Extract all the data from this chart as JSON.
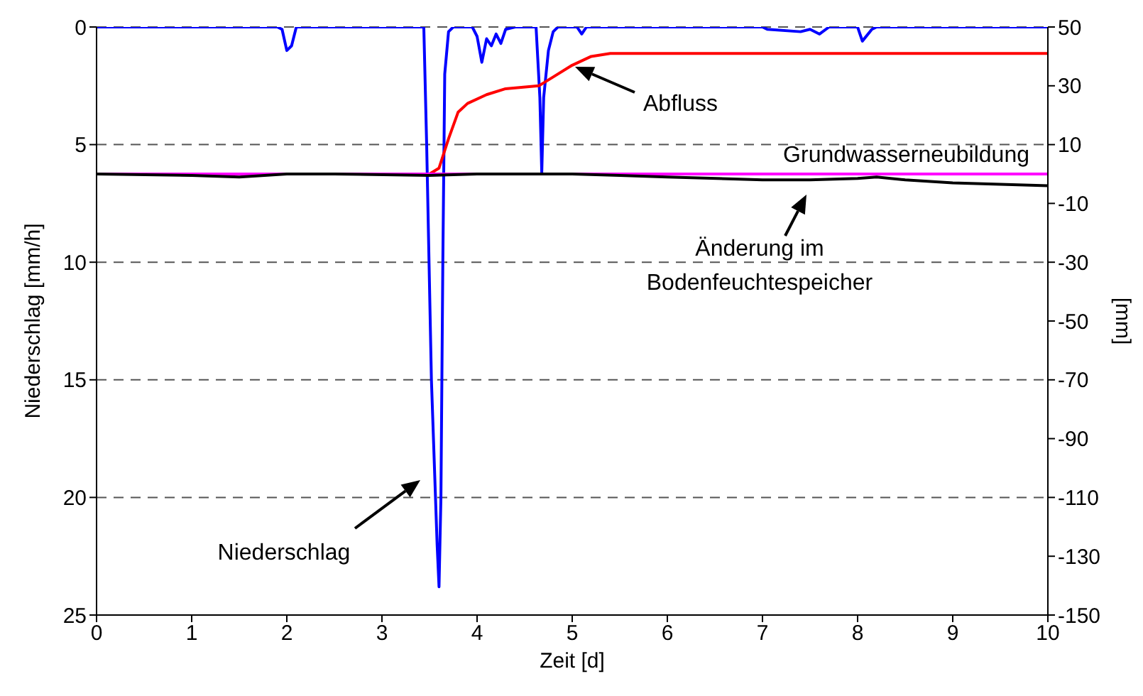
{
  "chart_data": {
    "type": "line",
    "xlabel": "Zeit [d]",
    "ylabel": "Niederschlag [mm/h]",
    "y2label": "[mm]",
    "xlim": [
      0,
      10
    ],
    "xticks": [
      0,
      1,
      2,
      3,
      4,
      5,
      6,
      7,
      8,
      9,
      10
    ],
    "ylim": [
      25,
      0
    ],
    "yticks": [
      0,
      5,
      10,
      15,
      20,
      25
    ],
    "y2lim": [
      -150,
      50
    ],
    "y2ticks": [
      50,
      30,
      10,
      -10,
      -30,
      -50,
      -70,
      -90,
      -110,
      -130,
      -150
    ],
    "annotations": [
      "Niederschlag",
      "Abfluss",
      "Grundwasserneubildung",
      "Änderung im Bodenfeuchtespeicher"
    ],
    "grid": "y",
    "line_style": "solid",
    "marker": "none",
    "series": [
      {
        "color": "#0000ff",
        "x": [
          0,
          1.9,
          1.95,
          2.0,
          2.05,
          2.1,
          3.44,
          3.47,
          3.52,
          3.58,
          3.6,
          3.62,
          3.64,
          3.66,
          3.7,
          3.75,
          3.95,
          4.0,
          4.05,
          4.1,
          4.15,
          4.2,
          4.25,
          4.3,
          4.4,
          4.62,
          4.66,
          4.68,
          4.7,
          4.75,
          4.8,
          4.85,
          5.05,
          5.1,
          5.15,
          7.0,
          7.05,
          7.4,
          7.5,
          7.6,
          7.7,
          8.0,
          8.05,
          8.15,
          8.2,
          10
        ],
        "values": [
          0,
          0,
          0.1,
          1.0,
          0.8,
          0,
          0,
          5,
          15,
          22,
          23.8,
          20,
          10,
          2,
          0.2,
          0,
          0,
          0.4,
          1.5,
          0.5,
          0.8,
          0.3,
          0.7,
          0.1,
          0,
          0,
          3,
          6.2,
          3,
          1,
          0.2,
          0,
          0,
          0.3,
          0,
          0,
          0.1,
          0.2,
          0.1,
          0.3,
          0,
          0,
          0.6,
          0.1,
          0,
          0
        ]
      },
      {
        "color": "#ff0000",
        "axis": "y2",
        "x": [
          0,
          3.5,
          3.6,
          3.7,
          3.8,
          3.9,
          4.1,
          4.3,
          4.65,
          4.8,
          5.0,
          5.2,
          5.4,
          6,
          10
        ],
        "values": [
          0,
          0,
          2,
          12,
          21,
          24,
          27,
          29,
          30,
          33,
          37,
          40,
          41,
          41,
          41
        ]
      },
      {
        "color": "#ff00ff",
        "axis": "y2",
        "x": [
          0,
          10
        ],
        "values": [
          0,
          0
        ]
      },
      {
        "color": "#000000",
        "axis": "y2",
        "x": [
          0,
          1.0,
          1.5,
          2.0,
          2.5,
          3.5,
          4,
          5,
          5.5,
          6,
          7,
          7.5,
          8.0,
          8.2,
          8.5,
          9,
          10
        ],
        "values": [
          0,
          -0.5,
          -1,
          0,
          0,
          -0.5,
          0,
          0,
          -0.5,
          -1,
          -2,
          -2,
          -1.5,
          -1,
          -2,
          -3,
          -4
        ]
      }
    ]
  }
}
